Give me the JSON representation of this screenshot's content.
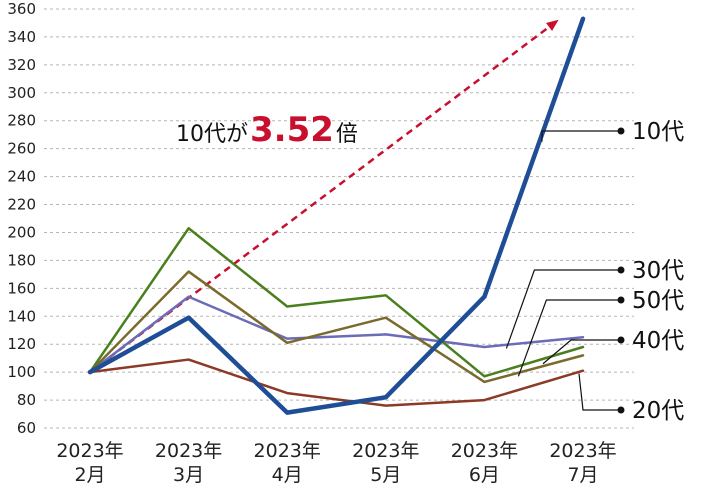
{
  "chart_data": {
    "type": "line",
    "title": "",
    "xlabel": "",
    "ylabel": "",
    "ylim": [
      60,
      360
    ],
    "ytick_step": 20,
    "grid": "horizontal-dashed",
    "categories": [
      [
        "2023年",
        "2月"
      ],
      [
        "2023年",
        "3月"
      ],
      [
        "2023年",
        "4月"
      ],
      [
        "2023年",
        "5月"
      ],
      [
        "2023年",
        "6月"
      ],
      [
        "2023年",
        "7月"
      ]
    ],
    "series": [
      {
        "name": "10代",
        "color": "#1f4e96",
        "values": [
          100,
          139,
          71,
          82,
          154,
          353
        ],
        "bold": true
      },
      {
        "name": "20代",
        "color": "#8b3a26",
        "values": [
          100,
          109,
          85,
          76,
          80,
          101
        ]
      },
      {
        "name": "30代",
        "color": "#6b6bb8",
        "values": [
          100,
          154,
          124,
          127,
          118,
          125
        ]
      },
      {
        "name": "40代",
        "color": "#4a7f1e",
        "values": [
          100,
          203,
          147,
          155,
          97,
          118
        ]
      },
      {
        "name": "50代",
        "color": "#7a6a2c",
        "values": [
          100,
          172,
          121,
          139,
          93,
          112
        ]
      }
    ],
    "legend": [
      {
        "series": "10代",
        "label_value": 131
      },
      {
        "series": "30代",
        "label_value": 270
      },
      {
        "series": "50代",
        "label_value": 300
      },
      {
        "series": "40代",
        "label_value": 340
      },
      {
        "series": "20代",
        "label_value": 410
      }
    ],
    "annotation": {
      "prefix": "10代が",
      "value": "3.52",
      "suffix": "倍",
      "arrow_color": "#c8102e"
    }
  }
}
